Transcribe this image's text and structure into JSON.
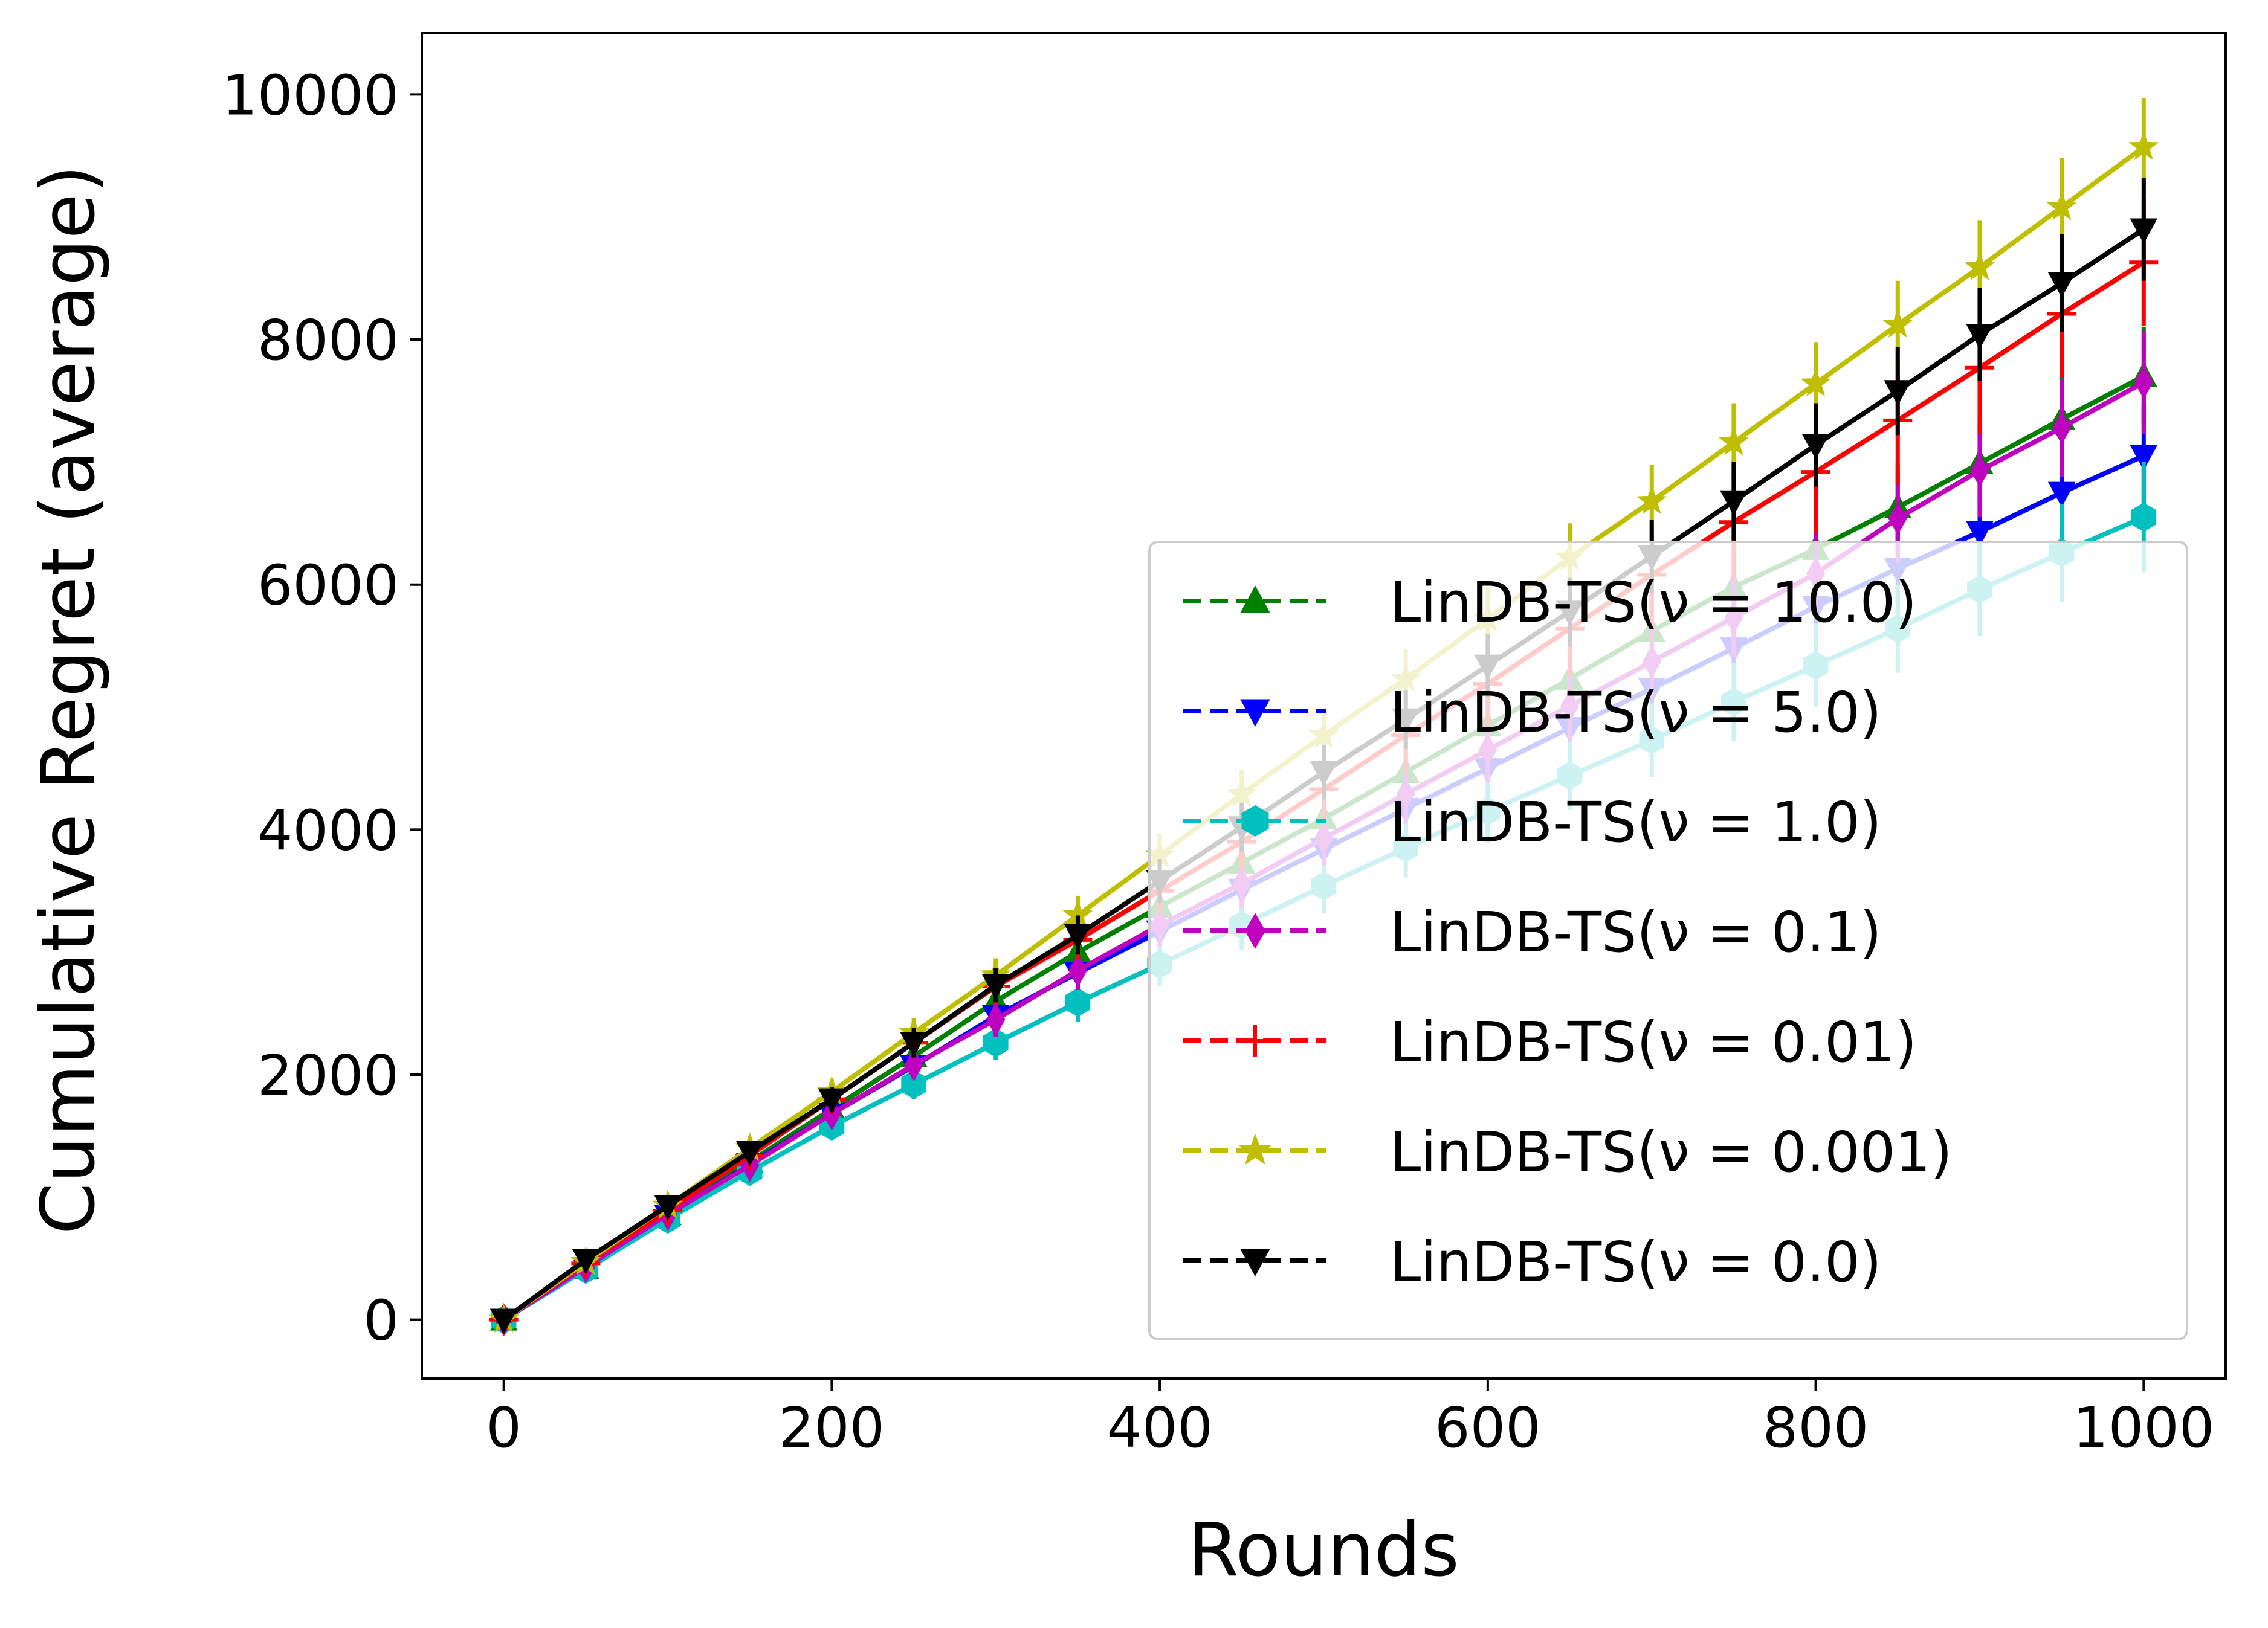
{
  "chart_data": {
    "type": "line",
    "xlabel": "Rounds",
    "ylabel": "Cumulative Regret (average)",
    "xlim": [
      -50,
      1050
    ],
    "ylim": [
      -480,
      10500
    ],
    "xticks": [
      0,
      200,
      400,
      600,
      800,
      1000
    ],
    "yticks": [
      0,
      2000,
      4000,
      6000,
      8000,
      10000
    ],
    "grid": false,
    "legend_position": "lower right",
    "x": [
      0,
      50,
      100,
      150,
      200,
      250,
      300,
      350,
      400,
      450,
      500,
      550,
      600,
      650,
      700,
      750,
      800,
      850,
      900,
      950,
      1000
    ],
    "series": [
      {
        "name": "LinDB-TS(ν = 10.0)",
        "color": "#008000",
        "marker": "triangle-up",
        "values": [
          0,
          420,
          860,
          1290,
          1720,
          2150,
          2600,
          3000,
          3370,
          3730,
          4090,
          4470,
          4850,
          5230,
          5620,
          5980,
          6290,
          6630,
          6990,
          7350,
          7700
        ],
        "error": [
          0,
          40,
          60,
          80,
          100,
          120,
          140,
          160,
          180,
          200,
          220,
          240,
          260,
          280,
          300,
          320,
          340,
          360,
          380,
          400,
          400
        ]
      },
      {
        "name": "LinDB-TS(ν = 5.0)",
        "color": "#0000ff",
        "marker": "triangle-down",
        "values": [
          0,
          420,
          850,
          1270,
          1680,
          2070,
          2480,
          2830,
          3170,
          3510,
          3840,
          4170,
          4500,
          4830,
          5150,
          5480,
          5820,
          6130,
          6430,
          6750,
          7050
        ],
        "error": [
          0,
          40,
          60,
          80,
          100,
          120,
          140,
          160,
          180,
          200,
          220,
          240,
          260,
          280,
          300,
          320,
          340,
          360,
          380,
          400,
          420
        ]
      },
      {
        "name": "LinDB-TS(ν = 1.0)",
        "color": "#00bfbf",
        "marker": "hexagon",
        "values": [
          0,
          410,
          820,
          1210,
          1580,
          1920,
          2260,
          2590,
          2900,
          3220,
          3540,
          3850,
          4150,
          4440,
          4730,
          5040,
          5340,
          5640,
          5960,
          6260,
          6550
        ],
        "error": [
          0,
          40,
          60,
          80,
          100,
          120,
          140,
          160,
          180,
          200,
          220,
          240,
          260,
          280,
          300,
          320,
          340,
          360,
          380,
          400,
          450
        ]
      },
      {
        "name": "LinDB-TS(ν = 0.1)",
        "color": "#bf00bf",
        "marker": "thin-diamond",
        "values": [
          0,
          430,
          860,
          1260,
          1680,
          2080,
          2450,
          2850,
          3220,
          3560,
          3930,
          4290,
          4650,
          5010,
          5370,
          5730,
          6090,
          6540,
          6930,
          7280,
          7650
        ],
        "error": [
          0,
          40,
          60,
          80,
          100,
          120,
          140,
          160,
          180,
          200,
          220,
          240,
          260,
          280,
          300,
          320,
          340,
          360,
          380,
          400,
          420
        ]
      },
      {
        "name": "LinDB-TS(ν = 0.01)",
        "color": "#ff0000",
        "marker": "plus",
        "values": [
          0,
          460,
          890,
          1340,
          1800,
          2260,
          2720,
          3100,
          3500,
          3900,
          4330,
          4770,
          5190,
          5640,
          6080,
          6510,
          6920,
          7340,
          7770,
          8210,
          8630
        ],
        "error": [
          0,
          40,
          60,
          80,
          100,
          120,
          140,
          160,
          180,
          220,
          260,
          300,
          340,
          380,
          420,
          460,
          500,
          520,
          540,
          520,
          520
        ]
      },
      {
        "name": "LinDB-TS(ν = 0.001)",
        "color": "#bfbf00",
        "marker": "star",
        "values": [
          0,
          470,
          930,
          1400,
          1860,
          2340,
          2810,
          3300,
          3790,
          4290,
          4770,
          5230,
          5720,
          6220,
          6680,
          7160,
          7640,
          8120,
          8590,
          9080,
          9570
        ],
        "error": [
          0,
          40,
          60,
          80,
          100,
          120,
          140,
          160,
          180,
          200,
          220,
          240,
          260,
          280,
          300,
          320,
          340,
          360,
          380,
          400,
          400
        ]
      },
      {
        "name": "LinDB-TS(ν = 0.0)",
        "color": "#000000",
        "marker": "triangle-down",
        "values": [
          0,
          490,
          930,
          1370,
          1800,
          2260,
          2730,
          3140,
          3580,
          4020,
          4470,
          4900,
          5340,
          5780,
          6230,
          6680,
          7140,
          7580,
          8040,
          8460,
          8900
        ],
        "error": [
          0,
          40,
          60,
          80,
          100,
          120,
          140,
          160,
          180,
          200,
          220,
          240,
          260,
          280,
          300,
          320,
          340,
          360,
          380,
          400,
          420
        ]
      }
    ]
  }
}
